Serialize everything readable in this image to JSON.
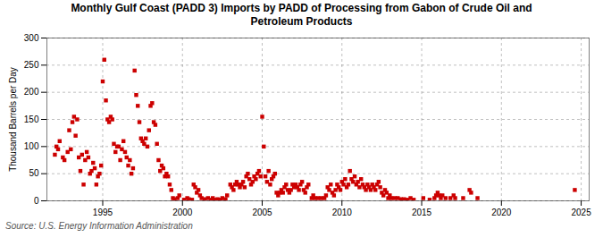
{
  "chart_data": {
    "type": "scatter",
    "title": "Monthly Gulf Coast (PADD 3) Imports by PADD of Processing from Gabon of Crude Oil and\nPetroleum Products",
    "y_label": "Thousand Barrels per Day",
    "caption": "Source: U.S. Energy Information Administration",
    "color": "#cc0000",
    "marker": "square",
    "grid": true,
    "xlim": [
      1991.5,
      2025.5
    ],
    "ylim": [
      0,
      300
    ],
    "xticks": [
      1995,
      2000,
      2005,
      2010,
      2015,
      2020,
      2025
    ],
    "yticks": [
      0,
      50,
      100,
      150,
      200,
      250,
      300
    ],
    "x": [
      1992.0,
      1992.1,
      1992.2,
      1992.3,
      1992.5,
      1992.6,
      1992.8,
      1992.9,
      1993.0,
      1993.1,
      1993.2,
      1993.3,
      1993.4,
      1993.5,
      1993.6,
      1993.7,
      1993.8,
      1993.9,
      1994.0,
      1994.1,
      1994.2,
      1994.3,
      1994.4,
      1994.5,
      1994.6,
      1994.7,
      1994.8,
      1994.9,
      1995.0,
      1995.1,
      1995.2,
      1995.3,
      1995.4,
      1995.5,
      1995.6,
      1995.7,
      1995.8,
      1995.9,
      1996.0,
      1996.1,
      1996.2,
      1996.3,
      1996.4,
      1996.5,
      1996.6,
      1996.7,
      1996.8,
      1996.9,
      1997.0,
      1997.1,
      1997.2,
      1997.3,
      1997.4,
      1997.5,
      1997.6,
      1997.7,
      1997.8,
      1997.9,
      1998.0,
      1998.1,
      1998.2,
      1998.3,
      1998.4,
      1998.5,
      1998.6,
      1998.7,
      1998.8,
      1998.9,
      1999.0,
      1999.1,
      1999.2,
      1999.3,
      1999.4,
      1999.5,
      1999.7,
      1999.8,
      2000.1,
      2000.3,
      2000.4,
      2000.6,
      2000.7,
      2000.8,
      2000.9,
      2001.0,
      2001.1,
      2001.2,
      2001.4,
      2001.6,
      2001.8,
      2001.9,
      2002.0,
      2002.2,
      2002.4,
      2002.5,
      2002.7,
      2002.8,
      2003.0,
      2003.1,
      2003.2,
      2003.3,
      2003.4,
      2003.5,
      2003.6,
      2003.7,
      2003.8,
      2003.9,
      2004.0,
      2004.1,
      2004.2,
      2004.3,
      2004.4,
      2004.5,
      2004.6,
      2004.7,
      2004.8,
      2004.9,
      2005.0,
      2005.1,
      2005.2,
      2005.3,
      2005.4,
      2005.5,
      2005.6,
      2005.7,
      2005.8,
      2005.9,
      2006.0,
      2006.1,
      2006.2,
      2006.3,
      2006.4,
      2006.5,
      2006.6,
      2006.7,
      2006.8,
      2006.9,
      2007.0,
      2007.1,
      2007.2,
      2007.3,
      2007.4,
      2007.5,
      2007.6,
      2007.7,
      2007.8,
      2007.9,
      2008.1,
      2008.2,
      2008.3,
      2008.5,
      2008.7,
      2008.9,
      2009.0,
      2009.1,
      2009.2,
      2009.3,
      2009.4,
      2009.5,
      2009.6,
      2009.7,
      2009.8,
      2009.9,
      2010.0,
      2010.1,
      2010.2,
      2010.3,
      2010.4,
      2010.5,
      2010.6,
      2010.7,
      2010.8,
      2010.9,
      2011.0,
      2011.1,
      2011.2,
      2011.3,
      2011.4,
      2011.5,
      2011.6,
      2011.7,
      2011.8,
      2011.9,
      2012.0,
      2012.1,
      2012.2,
      2012.3,
      2012.4,
      2012.5,
      2012.6,
      2012.7,
      2012.8,
      2012.9,
      2013.0,
      2013.1,
      2013.3,
      2013.5,
      2013.7,
      2013.9,
      2014.1,
      2014.3,
      2014.5,
      2015.1,
      2015.5,
      2015.8,
      2015.9,
      2016.0,
      2016.1,
      2016.2,
      2016.3,
      2016.5,
      2016.8,
      2017.0,
      2017.1,
      2017.6,
      2018.0,
      2018.1,
      2018.5,
      2024.6
    ],
    "values": [
      85,
      100,
      95,
      110,
      80,
      75,
      90,
      130,
      95,
      145,
      155,
      120,
      150,
      80,
      55,
      85,
      30,
      75,
      90,
      80,
      50,
      55,
      70,
      60,
      30,
      45,
      50,
      65,
      220,
      260,
      185,
      150,
      145,
      155,
      150,
      105,
      90,
      100,
      100,
      75,
      95,
      110,
      90,
      80,
      65,
      75,
      50,
      60,
      240,
      195,
      175,
      145,
      115,
      110,
      105,
      115,
      100,
      130,
      175,
      180,
      145,
      140,
      105,
      75,
      55,
      65,
      60,
      45,
      50,
      45,
      30,
      20,
      5,
      3,
      5,
      10,
      2,
      5,
      3,
      2,
      30,
      25,
      15,
      20,
      10,
      5,
      3,
      5,
      2,
      5,
      2,
      3,
      2,
      5,
      3,
      10,
      30,
      25,
      20,
      30,
      35,
      30,
      25,
      30,
      35,
      25,
      45,
      50,
      40,
      30,
      35,
      45,
      40,
      50,
      55,
      45,
      155,
      100,
      45,
      35,
      55,
      30,
      40,
      45,
      50,
      15,
      10,
      15,
      20,
      15,
      25,
      30,
      20,
      15,
      20,
      30,
      25,
      30,
      25,
      20,
      30,
      35,
      20,
      15,
      25,
      30,
      5,
      10,
      5,
      5,
      5,
      5,
      10,
      25,
      20,
      30,
      15,
      10,
      20,
      30,
      25,
      20,
      35,
      30,
      40,
      25,
      30,
      55,
      40,
      35,
      45,
      30,
      35,
      25,
      40,
      30,
      25,
      20,
      30,
      25,
      20,
      30,
      25,
      20,
      30,
      35,
      25,
      15,
      10,
      20,
      15,
      5,
      10,
      5,
      5,
      5,
      3,
      3,
      2,
      5,
      2,
      5,
      2,
      5,
      10,
      15,
      10,
      5,
      10,
      5,
      5,
      10,
      5,
      5,
      20,
      15,
      5,
      20
    ]
  }
}
